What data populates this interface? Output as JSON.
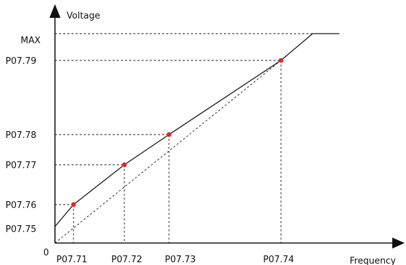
{
  "axes": {
    "y_axis_title": "Voltage",
    "x_axis_title": "Frequency",
    "origin_label": "0"
  },
  "y_labels": {
    "max": "MAX",
    "p0779": "P07.79",
    "p0778": "P07.78",
    "p0777": "P07.77",
    "p0776": "P07.76",
    "p0775": "P07.75"
  },
  "x_labels": {
    "p0771": "P07.71",
    "p0772": "P07.72",
    "p0773": "P07.73",
    "p0774": "P07.74"
  },
  "colors": {
    "curve": "#111111",
    "guides": "#111111",
    "points": "#e8242a"
  }
}
